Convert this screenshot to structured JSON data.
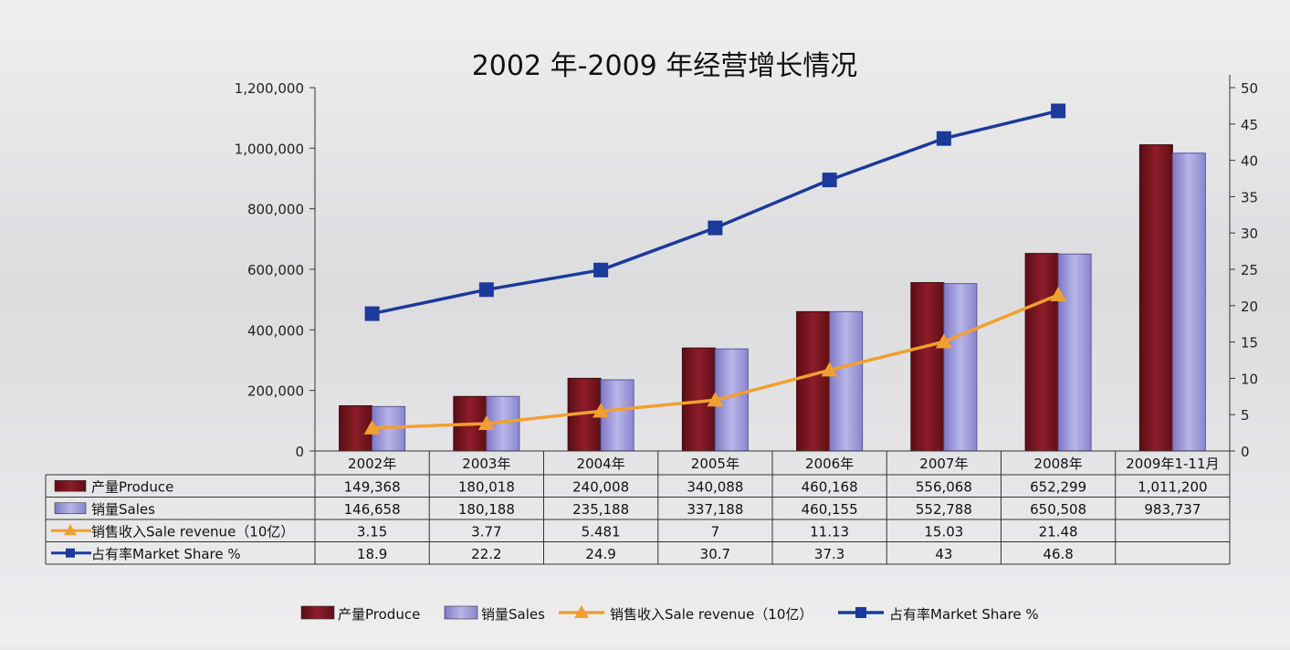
{
  "chart_data": {
    "type": "bar",
    "title": "2002 年-2009 年经营增长情况",
    "categories": [
      "2002年",
      "2003年",
      "2004年",
      "2005年",
      "2006年",
      "2007年",
      "2008年",
      "2009年1-11月"
    ],
    "y_left": {
      "ylim": [
        0,
        1200000
      ],
      "ticks": [
        "0",
        "200,000",
        "400,000",
        "600,000",
        "800,000",
        "1,000,000",
        "1,200,000"
      ],
      "tick_values": [
        0,
        200000,
        400000,
        600000,
        800000,
        1000000,
        1200000
      ]
    },
    "y_right": {
      "ylim": [
        0,
        50
      ],
      "ticks": [
        "0",
        "5",
        "10",
        "15",
        "20",
        "25",
        "30",
        "35",
        "40",
        "45",
        "50"
      ],
      "tick_values": [
        0,
        5,
        10,
        15,
        20,
        25,
        30,
        35,
        40,
        45,
        50
      ]
    },
    "series": [
      {
        "name": "产量Produce",
        "kind": "bar",
        "axis": "left",
        "color": "#7a1620",
        "values": [
          149368,
          180018,
          240008,
          340088,
          460168,
          556068,
          652299,
          1011200
        ],
        "labels": [
          "149,368",
          "180,018",
          "240,008",
          "340,088",
          "460,168",
          "556,068",
          "652,299",
          "1,011,200"
        ]
      },
      {
        "name": "销量Sales",
        "kind": "bar",
        "axis": "left",
        "color": "#9f99d8",
        "values": [
          146658,
          180188,
          235188,
          337188,
          460155,
          552788,
          650508,
          983737
        ],
        "labels": [
          "146,658",
          "180,188",
          "235,188",
          "337,188",
          "460,155",
          "552,788",
          "650,508",
          "983,737"
        ]
      },
      {
        "name": "销售收入Sale revenue（10亿）",
        "kind": "line",
        "axis": "right",
        "color": "#f0a030",
        "marker": "triangle",
        "values": [
          3.15,
          3.77,
          5.481,
          7,
          11.13,
          15.03,
          21.48,
          null
        ],
        "labels": [
          "3.15",
          "3.77",
          "5.481",
          "7",
          "11.13",
          "15.03",
          "21.48",
          ""
        ]
      },
      {
        "name": "占有率Market Share %",
        "kind": "line",
        "axis": "right",
        "color": "#1b3a9a",
        "marker": "square",
        "values": [
          18.9,
          22.2,
          24.9,
          30.7,
          37.3,
          43,
          46.8,
          null
        ],
        "labels": [
          "18.9",
          "22.2",
          "24.9",
          "30.7",
          "37.3",
          "43",
          "46.8",
          ""
        ]
      }
    ],
    "legend_bottom": [
      "产量Produce",
      "销量Sales",
      "销售收入Sale revenue（10亿）",
      "占有率Market Share %"
    ],
    "legend": "bottom",
    "grid": false
  }
}
